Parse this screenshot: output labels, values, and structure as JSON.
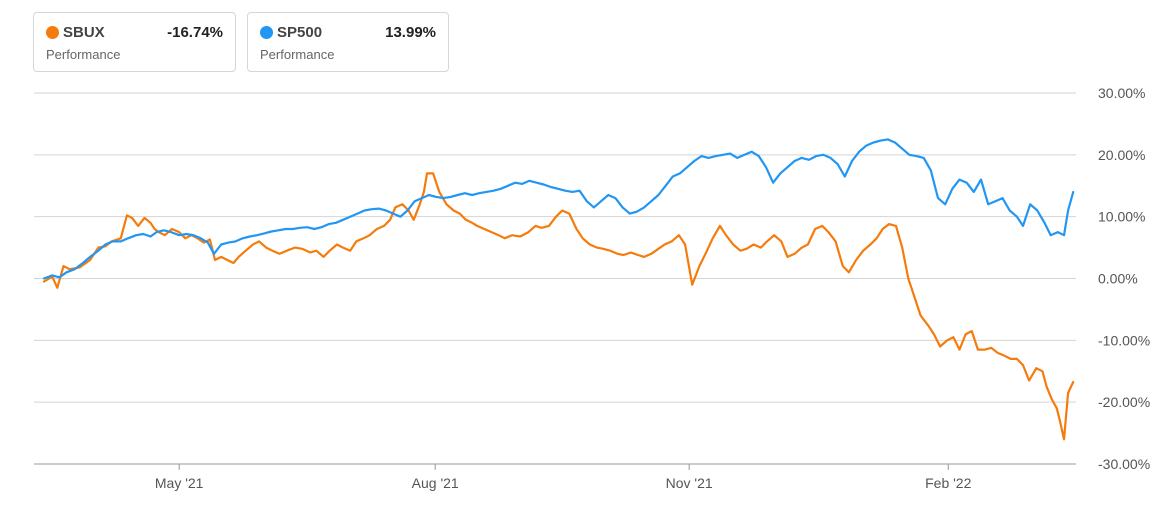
{
  "legend": [
    {
      "ticker": "SBUX",
      "sub": "Performance",
      "value": "-16.74%",
      "color": "#f57c0c"
    },
    {
      "ticker": "SP500",
      "sub": "Performance",
      "value": "13.99%",
      "color": "#2196f3"
    }
  ],
  "chart_data": {
    "type": "line",
    "xlim": [
      0,
      100
    ],
    "ylim": [
      -30,
      30
    ],
    "y_ticks": [
      30,
      20,
      10,
      0,
      -10,
      -20,
      -30
    ],
    "y_tick_labels": [
      "30.00%",
      "20.00%",
      "10.00%",
      "0.00%",
      "-10.00%",
      "-20.00%",
      "-30.00%"
    ],
    "x_ticks": [
      {
        "x": 13.2,
        "label": "May '21"
      },
      {
        "x": 38.2,
        "label": "Aug '21"
      },
      {
        "x": 63.0,
        "label": "Nov '21"
      },
      {
        "x": 88.3,
        "label": "Feb '22"
      }
    ],
    "grid": true,
    "series": [
      {
        "name": "SBUX",
        "color": "#f57c0c",
        "points": [
          [
            0,
            -0.5
          ],
          [
            0.8,
            0.3
          ],
          [
            1.3,
            -1.5
          ],
          [
            1.9,
            2
          ],
          [
            2.5,
            1.5
          ],
          [
            3.5,
            1.8
          ],
          [
            4.5,
            3
          ],
          [
            5.3,
            5
          ],
          [
            6,
            5.2
          ],
          [
            6.6,
            6
          ],
          [
            7.5,
            6.5
          ],
          [
            8.1,
            10.2
          ],
          [
            8.6,
            9.8
          ],
          [
            9.2,
            8.5
          ],
          [
            9.8,
            9.8
          ],
          [
            10.4,
            9
          ],
          [
            10.8,
            8
          ],
          [
            11.2,
            7.5
          ],
          [
            11.8,
            7
          ],
          [
            12.5,
            8
          ],
          [
            13.2,
            7.5
          ],
          [
            13.8,
            6.5
          ],
          [
            14.4,
            7
          ],
          [
            15,
            6.5
          ],
          [
            15.6,
            5.8
          ],
          [
            16.2,
            6.3
          ],
          [
            16.7,
            3
          ],
          [
            17.3,
            3.5
          ],
          [
            17.9,
            3
          ],
          [
            18.5,
            2.5
          ],
          [
            19,
            3.5
          ],
          [
            19.7,
            4.5
          ],
          [
            20.4,
            5.5
          ],
          [
            21,
            6
          ],
          [
            21.7,
            5
          ],
          [
            22.3,
            4.5
          ],
          [
            23,
            4
          ],
          [
            23.7,
            4.5
          ],
          [
            24.5,
            5
          ],
          [
            25.2,
            4.8
          ],
          [
            26,
            4.2
          ],
          [
            26.6,
            4.5
          ],
          [
            27.3,
            3.5
          ],
          [
            27.9,
            4.5
          ],
          [
            28.6,
            5.5
          ],
          [
            29.2,
            5
          ],
          [
            29.9,
            4.5
          ],
          [
            30.5,
            6
          ],
          [
            31.2,
            6.5
          ],
          [
            31.8,
            7
          ],
          [
            32.5,
            8
          ],
          [
            33.2,
            8.5
          ],
          [
            33.8,
            9.5
          ],
          [
            34.3,
            11.5
          ],
          [
            35,
            12
          ],
          [
            35.6,
            11
          ],
          [
            36.1,
            9.5
          ],
          [
            36.7,
            12
          ],
          [
            37.1,
            14
          ],
          [
            37.4,
            17
          ],
          [
            38,
            17
          ],
          [
            38.6,
            14
          ],
          [
            39.3,
            12
          ],
          [
            40,
            11
          ],
          [
            40.6,
            10.5
          ],
          [
            41.2,
            9.5
          ],
          [
            41.8,
            9
          ],
          [
            42.3,
            8.5
          ],
          [
            43,
            8
          ],
          [
            43.7,
            7.5
          ],
          [
            44.4,
            7
          ],
          [
            45,
            6.5
          ],
          [
            45.7,
            7
          ],
          [
            46.5,
            6.8
          ],
          [
            47.3,
            7.5
          ],
          [
            48,
            8.5
          ],
          [
            48.6,
            8.2
          ],
          [
            49.3,
            8.5
          ],
          [
            50,
            10
          ],
          [
            50.6,
            11
          ],
          [
            51.3,
            10.5
          ],
          [
            52,
            8
          ],
          [
            52.6,
            6.5
          ],
          [
            53.3,
            5.5
          ],
          [
            54,
            5
          ],
          [
            54.6,
            4.8
          ],
          [
            55.3,
            4.5
          ],
          [
            56,
            4
          ],
          [
            56.6,
            3.8
          ],
          [
            57.3,
            4.2
          ],
          [
            58,
            3.8
          ],
          [
            58.6,
            3.5
          ],
          [
            59.3,
            4
          ],
          [
            60,
            4.8
          ],
          [
            60.6,
            5.5
          ],
          [
            61.3,
            6
          ],
          [
            62,
            7
          ],
          [
            62.6,
            5.5
          ],
          [
            63.3,
            -1
          ],
          [
            64,
            2
          ],
          [
            64.6,
            4
          ],
          [
            65.3,
            6.5
          ],
          [
            66,
            8.5
          ],
          [
            66.6,
            7
          ],
          [
            67.3,
            5.5
          ],
          [
            68,
            4.5
          ],
          [
            68.6,
            4.8
          ],
          [
            69.3,
            5.5
          ],
          [
            70,
            5
          ],
          [
            70.6,
            6
          ],
          [
            71.3,
            7
          ],
          [
            72,
            6
          ],
          [
            72.6,
            3.5
          ],
          [
            73.3,
            4
          ],
          [
            74,
            5
          ],
          [
            74.6,
            5.5
          ],
          [
            75.3,
            8
          ],
          [
            76,
            8.5
          ],
          [
            76.6,
            7.5
          ],
          [
            77.3,
            6
          ],
          [
            78,
            2
          ],
          [
            78.6,
            1
          ],
          [
            79.3,
            3
          ],
          [
            80,
            4.5
          ],
          [
            80.7,
            5.5
          ],
          [
            81.3,
            6.5
          ],
          [
            81.9,
            8
          ],
          [
            82.5,
            8.8
          ],
          [
            83.2,
            8.5
          ],
          [
            83.8,
            5
          ],
          [
            84.4,
            0
          ],
          [
            85,
            -3
          ],
          [
            85.6,
            -6
          ],
          [
            86.3,
            -7.5
          ],
          [
            86.9,
            -9
          ],
          [
            87.5,
            -11
          ],
          [
            88.2,
            -10
          ],
          [
            88.8,
            -9.5
          ],
          [
            89.4,
            -11.5
          ],
          [
            90,
            -9
          ],
          [
            90.6,
            -8.5
          ],
          [
            91.2,
            -11.5
          ],
          [
            91.9,
            -11.5
          ],
          [
            92.5,
            -11.2
          ],
          [
            93.1,
            -12
          ],
          [
            93.8,
            -12.5
          ],
          [
            94.4,
            -13
          ],
          [
            95,
            -13
          ],
          [
            95.6,
            -14
          ],
          [
            96.2,
            -16.5
          ],
          [
            96.9,
            -14.5
          ],
          [
            97.5,
            -15
          ],
          [
            97.9,
            -17.5
          ],
          [
            98.4,
            -19.5
          ],
          [
            98.9,
            -21
          ],
          [
            99.2,
            -23
          ],
          [
            99.6,
            -26
          ],
          [
            100,
            -18.5
          ],
          [
            100.5,
            -16.74
          ]
        ]
      },
      {
        "name": "SP500",
        "color": "#2196f3",
        "points": [
          [
            0,
            0
          ],
          [
            0.8,
            0.5
          ],
          [
            1.5,
            0.2
          ],
          [
            2.2,
            1
          ],
          [
            3,
            1.5
          ],
          [
            3.8,
            2.5
          ],
          [
            4.5,
            3.5
          ],
          [
            5.3,
            4.5
          ],
          [
            6,
            5.5
          ],
          [
            6.7,
            6
          ],
          [
            7.5,
            6
          ],
          [
            8.2,
            6.5
          ],
          [
            9,
            7
          ],
          [
            9.7,
            7.2
          ],
          [
            10.4,
            6.8
          ],
          [
            11,
            7.5
          ],
          [
            11.7,
            7.8
          ],
          [
            12.4,
            7.5
          ],
          [
            13.2,
            7
          ],
          [
            13.9,
            7.2
          ],
          [
            14.6,
            7
          ],
          [
            15.3,
            6.5
          ],
          [
            16,
            5.8
          ],
          [
            16.6,
            4
          ],
          [
            17.3,
            5.5
          ],
          [
            18,
            5.8
          ],
          [
            18.7,
            6
          ],
          [
            19.4,
            6.5
          ],
          [
            20.1,
            6.8
          ],
          [
            20.8,
            7
          ],
          [
            21.5,
            7.3
          ],
          [
            22.2,
            7.6
          ],
          [
            22.9,
            7.8
          ],
          [
            23.6,
            8
          ],
          [
            24.3,
            8
          ],
          [
            25,
            8.2
          ],
          [
            25.7,
            8.3
          ],
          [
            26.4,
            8
          ],
          [
            27.1,
            8.3
          ],
          [
            27.8,
            8.8
          ],
          [
            28.5,
            9
          ],
          [
            29.2,
            9.5
          ],
          [
            29.9,
            10
          ],
          [
            30.6,
            10.5
          ],
          [
            31.3,
            11
          ],
          [
            32,
            11.2
          ],
          [
            32.7,
            11.3
          ],
          [
            33.4,
            11
          ],
          [
            34.1,
            10.5
          ],
          [
            34.8,
            10
          ],
          [
            35.5,
            11
          ],
          [
            36.2,
            12.5
          ],
          [
            36.9,
            13
          ],
          [
            37.6,
            13.5
          ],
          [
            38.3,
            13.2
          ],
          [
            39,
            13
          ],
          [
            39.7,
            13.2
          ],
          [
            40.4,
            13.5
          ],
          [
            41.1,
            13.8
          ],
          [
            41.8,
            13.5
          ],
          [
            42.5,
            13.8
          ],
          [
            43.2,
            14
          ],
          [
            43.9,
            14.2
          ],
          [
            44.6,
            14.5
          ],
          [
            45.3,
            15
          ],
          [
            46,
            15.5
          ],
          [
            46.7,
            15.3
          ],
          [
            47.4,
            15.8
          ],
          [
            48.1,
            15.5
          ],
          [
            48.8,
            15.2
          ],
          [
            49.5,
            14.8
          ],
          [
            50.2,
            14.5
          ],
          [
            50.9,
            14.2
          ],
          [
            51.6,
            14
          ],
          [
            52.3,
            14.2
          ],
          [
            53,
            12.5
          ],
          [
            53.7,
            11.5
          ],
          [
            54.4,
            12.5
          ],
          [
            55.1,
            13.5
          ],
          [
            55.8,
            13
          ],
          [
            56.5,
            11.5
          ],
          [
            57.2,
            10.5
          ],
          [
            57.9,
            10.8
          ],
          [
            58.6,
            11.5
          ],
          [
            59.3,
            12.5
          ],
          [
            60,
            13.5
          ],
          [
            60.7,
            15
          ],
          [
            61.4,
            16.5
          ],
          [
            62.1,
            17
          ],
          [
            62.8,
            18
          ],
          [
            63.5,
            19
          ],
          [
            64.2,
            19.8
          ],
          [
            64.9,
            19.5
          ],
          [
            65.6,
            19.8
          ],
          [
            66.3,
            20
          ],
          [
            67,
            20.2
          ],
          [
            67.7,
            19.5
          ],
          [
            68.4,
            20
          ],
          [
            69.1,
            20.5
          ],
          [
            69.8,
            19.8
          ],
          [
            70.5,
            18
          ],
          [
            71.2,
            15.5
          ],
          [
            71.9,
            17
          ],
          [
            72.6,
            18
          ],
          [
            73.3,
            19
          ],
          [
            74,
            19.5
          ],
          [
            74.7,
            19.2
          ],
          [
            75.4,
            19.8
          ],
          [
            76.1,
            20
          ],
          [
            76.8,
            19.5
          ],
          [
            77.5,
            18.5
          ],
          [
            78.2,
            16.5
          ],
          [
            78.9,
            19
          ],
          [
            79.6,
            20.5
          ],
          [
            80.3,
            21.5
          ],
          [
            81,
            22
          ],
          [
            81.7,
            22.3
          ],
          [
            82.4,
            22.5
          ],
          [
            83.1,
            22
          ],
          [
            83.8,
            21
          ],
          [
            84.5,
            20
          ],
          [
            85.2,
            19.8
          ],
          [
            85.9,
            19.5
          ],
          [
            86.6,
            17.5
          ],
          [
            87.3,
            13
          ],
          [
            88,
            12
          ],
          [
            88.7,
            14.5
          ],
          [
            89.4,
            16
          ],
          [
            90.1,
            15.5
          ],
          [
            90.8,
            14
          ],
          [
            91.5,
            16
          ],
          [
            92.2,
            12
          ],
          [
            92.9,
            12.5
          ],
          [
            93.6,
            13
          ],
          [
            94.3,
            11
          ],
          [
            95,
            10
          ],
          [
            95.6,
            8.5
          ],
          [
            96.3,
            12
          ],
          [
            97,
            11
          ],
          [
            97.7,
            9
          ],
          [
            98.3,
            7
          ],
          [
            99,
            7.5
          ],
          [
            99.6,
            7
          ],
          [
            100,
            11
          ],
          [
            100.5,
            13.99
          ]
        ]
      }
    ]
  }
}
